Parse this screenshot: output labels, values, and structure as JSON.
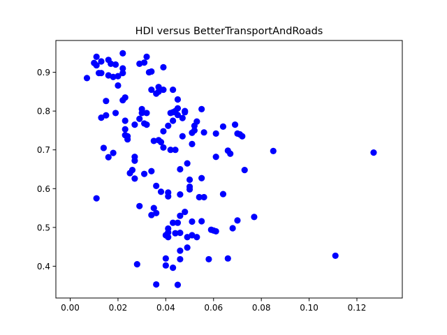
{
  "chart_data": {
    "type": "scatter",
    "title": "HDI versus BetterTransportAndRoads",
    "xlabel": "",
    "ylabel": "",
    "xlim": [
      -0.006,
      0.139
    ],
    "ylim": [
      0.318,
      0.982
    ],
    "xticks": [
      0.0,
      0.02,
      0.04,
      0.06,
      0.08,
      0.1,
      0.12
    ],
    "xtick_labels": [
      "0.00",
      "0.02",
      "0.04",
      "0.06",
      "0.08",
      "0.10",
      "0.12"
    ],
    "yticks": [
      0.4,
      0.5,
      0.6,
      0.7,
      0.8,
      0.9
    ],
    "ytick_labels": [
      "0.4",
      "0.5",
      "0.6",
      "0.7",
      "0.8",
      "0.9"
    ],
    "grid": false,
    "legend": "none",
    "marker_color": "#0000ff",
    "points": [
      [
        0.007,
        0.885
      ],
      [
        0.01,
        0.924
      ],
      [
        0.011,
        0.918
      ],
      [
        0.011,
        0.94
      ],
      [
        0.012,
        0.898
      ],
      [
        0.013,
        0.928
      ],
      [
        0.013,
        0.898
      ],
      [
        0.011,
        0.575
      ],
      [
        0.013,
        0.783
      ],
      [
        0.014,
        0.705
      ],
      [
        0.015,
        0.826
      ],
      [
        0.015,
        0.789
      ],
      [
        0.016,
        0.681
      ],
      [
        0.016,
        0.932
      ],
      [
        0.016,
        0.892
      ],
      [
        0.017,
        0.922
      ],
      [
        0.018,
        0.888
      ],
      [
        0.018,
        0.692
      ],
      [
        0.019,
        0.92
      ],
      [
        0.019,
        0.795
      ],
      [
        0.02,
        0.866
      ],
      [
        0.02,
        0.89
      ],
      [
        0.022,
        0.949
      ],
      [
        0.022,
        0.898
      ],
      [
        0.022,
        0.91
      ],
      [
        0.022,
        0.828
      ],
      [
        0.023,
        0.835
      ],
      [
        0.023,
        0.775
      ],
      [
        0.023,
        0.753
      ],
      [
        0.023,
        0.738
      ],
      [
        0.024,
        0.735
      ],
      [
        0.024,
        0.727
      ],
      [
        0.025,
        0.64
      ],
      [
        0.026,
        0.648
      ],
      [
        0.027,
        0.682
      ],
      [
        0.027,
        0.672
      ],
      [
        0.027,
        0.626
      ],
      [
        0.027,
        0.765
      ],
      [
        0.028,
        0.405
      ],
      [
        0.029,
        0.922
      ],
      [
        0.029,
        0.555
      ],
      [
        0.029,
        0.78
      ],
      [
        0.03,
        0.795
      ],
      [
        0.03,
        0.805
      ],
      [
        0.031,
        0.925
      ],
      [
        0.031,
        0.638
      ],
      [
        0.031,
        0.768
      ],
      [
        0.032,
        0.94
      ],
      [
        0.032,
        0.795
      ],
      [
        0.032,
        0.765
      ],
      [
        0.033,
        0.9
      ],
      [
        0.034,
        0.902
      ],
      [
        0.034,
        0.645
      ],
      [
        0.034,
        0.855
      ],
      [
        0.034,
        0.532
      ],
      [
        0.035,
        0.55
      ],
      [
        0.035,
        0.723
      ],
      [
        0.036,
        0.845
      ],
      [
        0.036,
        0.607
      ],
      [
        0.036,
        0.537
      ],
      [
        0.036,
        0.353
      ],
      [
        0.037,
        0.725
      ],
      [
        0.037,
        0.862
      ],
      [
        0.037,
        0.85
      ],
      [
        0.038,
        0.592
      ],
      [
        0.038,
        0.72
      ],
      [
        0.039,
        0.855
      ],
      [
        0.039,
        0.748
      ],
      [
        0.039,
        0.706
      ],
      [
        0.039,
        0.913
      ],
      [
        0.04,
        0.48
      ],
      [
        0.04,
        0.402
      ],
      [
        0.04,
        0.42
      ],
      [
        0.041,
        0.497
      ],
      [
        0.041,
        0.487
      ],
      [
        0.041,
        0.475
      ],
      [
        0.041,
        0.59
      ],
      [
        0.041,
        0.58
      ],
      [
        0.041,
        0.762
      ],
      [
        0.042,
        0.795
      ],
      [
        0.042,
        0.7
      ],
      [
        0.043,
        0.855
      ],
      [
        0.043,
        0.512
      ],
      [
        0.043,
        0.797
      ],
      [
        0.043,
        0.775
      ],
      [
        0.043,
        0.396
      ],
      [
        0.044,
        0.8
      ],
      [
        0.044,
        0.7
      ],
      [
        0.044,
        0.485
      ],
      [
        0.045,
        0.512
      ],
      [
        0.045,
        0.807
      ],
      [
        0.045,
        0.79
      ],
      [
        0.045,
        0.83
      ],
      [
        0.045,
        0.352
      ],
      [
        0.046,
        0.44
      ],
      [
        0.046,
        0.486
      ],
      [
        0.046,
        0.65
      ],
      [
        0.046,
        0.585
      ],
      [
        0.046,
        0.53
      ],
      [
        0.046,
        0.418
      ],
      [
        0.047,
        0.735
      ],
      [
        0.047,
        0.782
      ],
      [
        0.048,
        0.54
      ],
      [
        0.048,
        0.8
      ],
      [
        0.048,
        0.797
      ],
      [
        0.049,
        0.665
      ],
      [
        0.049,
        0.448
      ],
      [
        0.049,
        0.475
      ],
      [
        0.05,
        0.623
      ],
      [
        0.05,
        0.605
      ],
      [
        0.05,
        0.598
      ],
      [
        0.051,
        0.715
      ],
      [
        0.051,
        0.744
      ],
      [
        0.051,
        0.515
      ],
      [
        0.051,
        0.48
      ],
      [
        0.052,
        0.75
      ],
      [
        0.052,
        0.762
      ],
      [
        0.053,
        0.773
      ],
      [
        0.053,
        0.475
      ],
      [
        0.054,
        0.578
      ],
      [
        0.055,
        0.805
      ],
      [
        0.055,
        0.627
      ],
      [
        0.055,
        0.516
      ],
      [
        0.056,
        0.578
      ],
      [
        0.056,
        0.745
      ],
      [
        0.058,
        0.418
      ],
      [
        0.059,
        0.494
      ],
      [
        0.06,
        0.492
      ],
      [
        0.061,
        0.682
      ],
      [
        0.061,
        0.742
      ],
      [
        0.061,
        0.49
      ],
      [
        0.064,
        0.76
      ],
      [
        0.064,
        0.586
      ],
      [
        0.066,
        0.698
      ],
      [
        0.066,
        0.42
      ],
      [
        0.067,
        0.69
      ],
      [
        0.068,
        0.498
      ],
      [
        0.069,
        0.765
      ],
      [
        0.07,
        0.518
      ],
      [
        0.07,
        0.742
      ],
      [
        0.071,
        0.74
      ],
      [
        0.072,
        0.735
      ],
      [
        0.073,
        0.648
      ],
      [
        0.077,
        0.527
      ],
      [
        0.085,
        0.697
      ],
      [
        0.111,
        0.427
      ],
      [
        0.127,
        0.693
      ]
    ]
  }
}
